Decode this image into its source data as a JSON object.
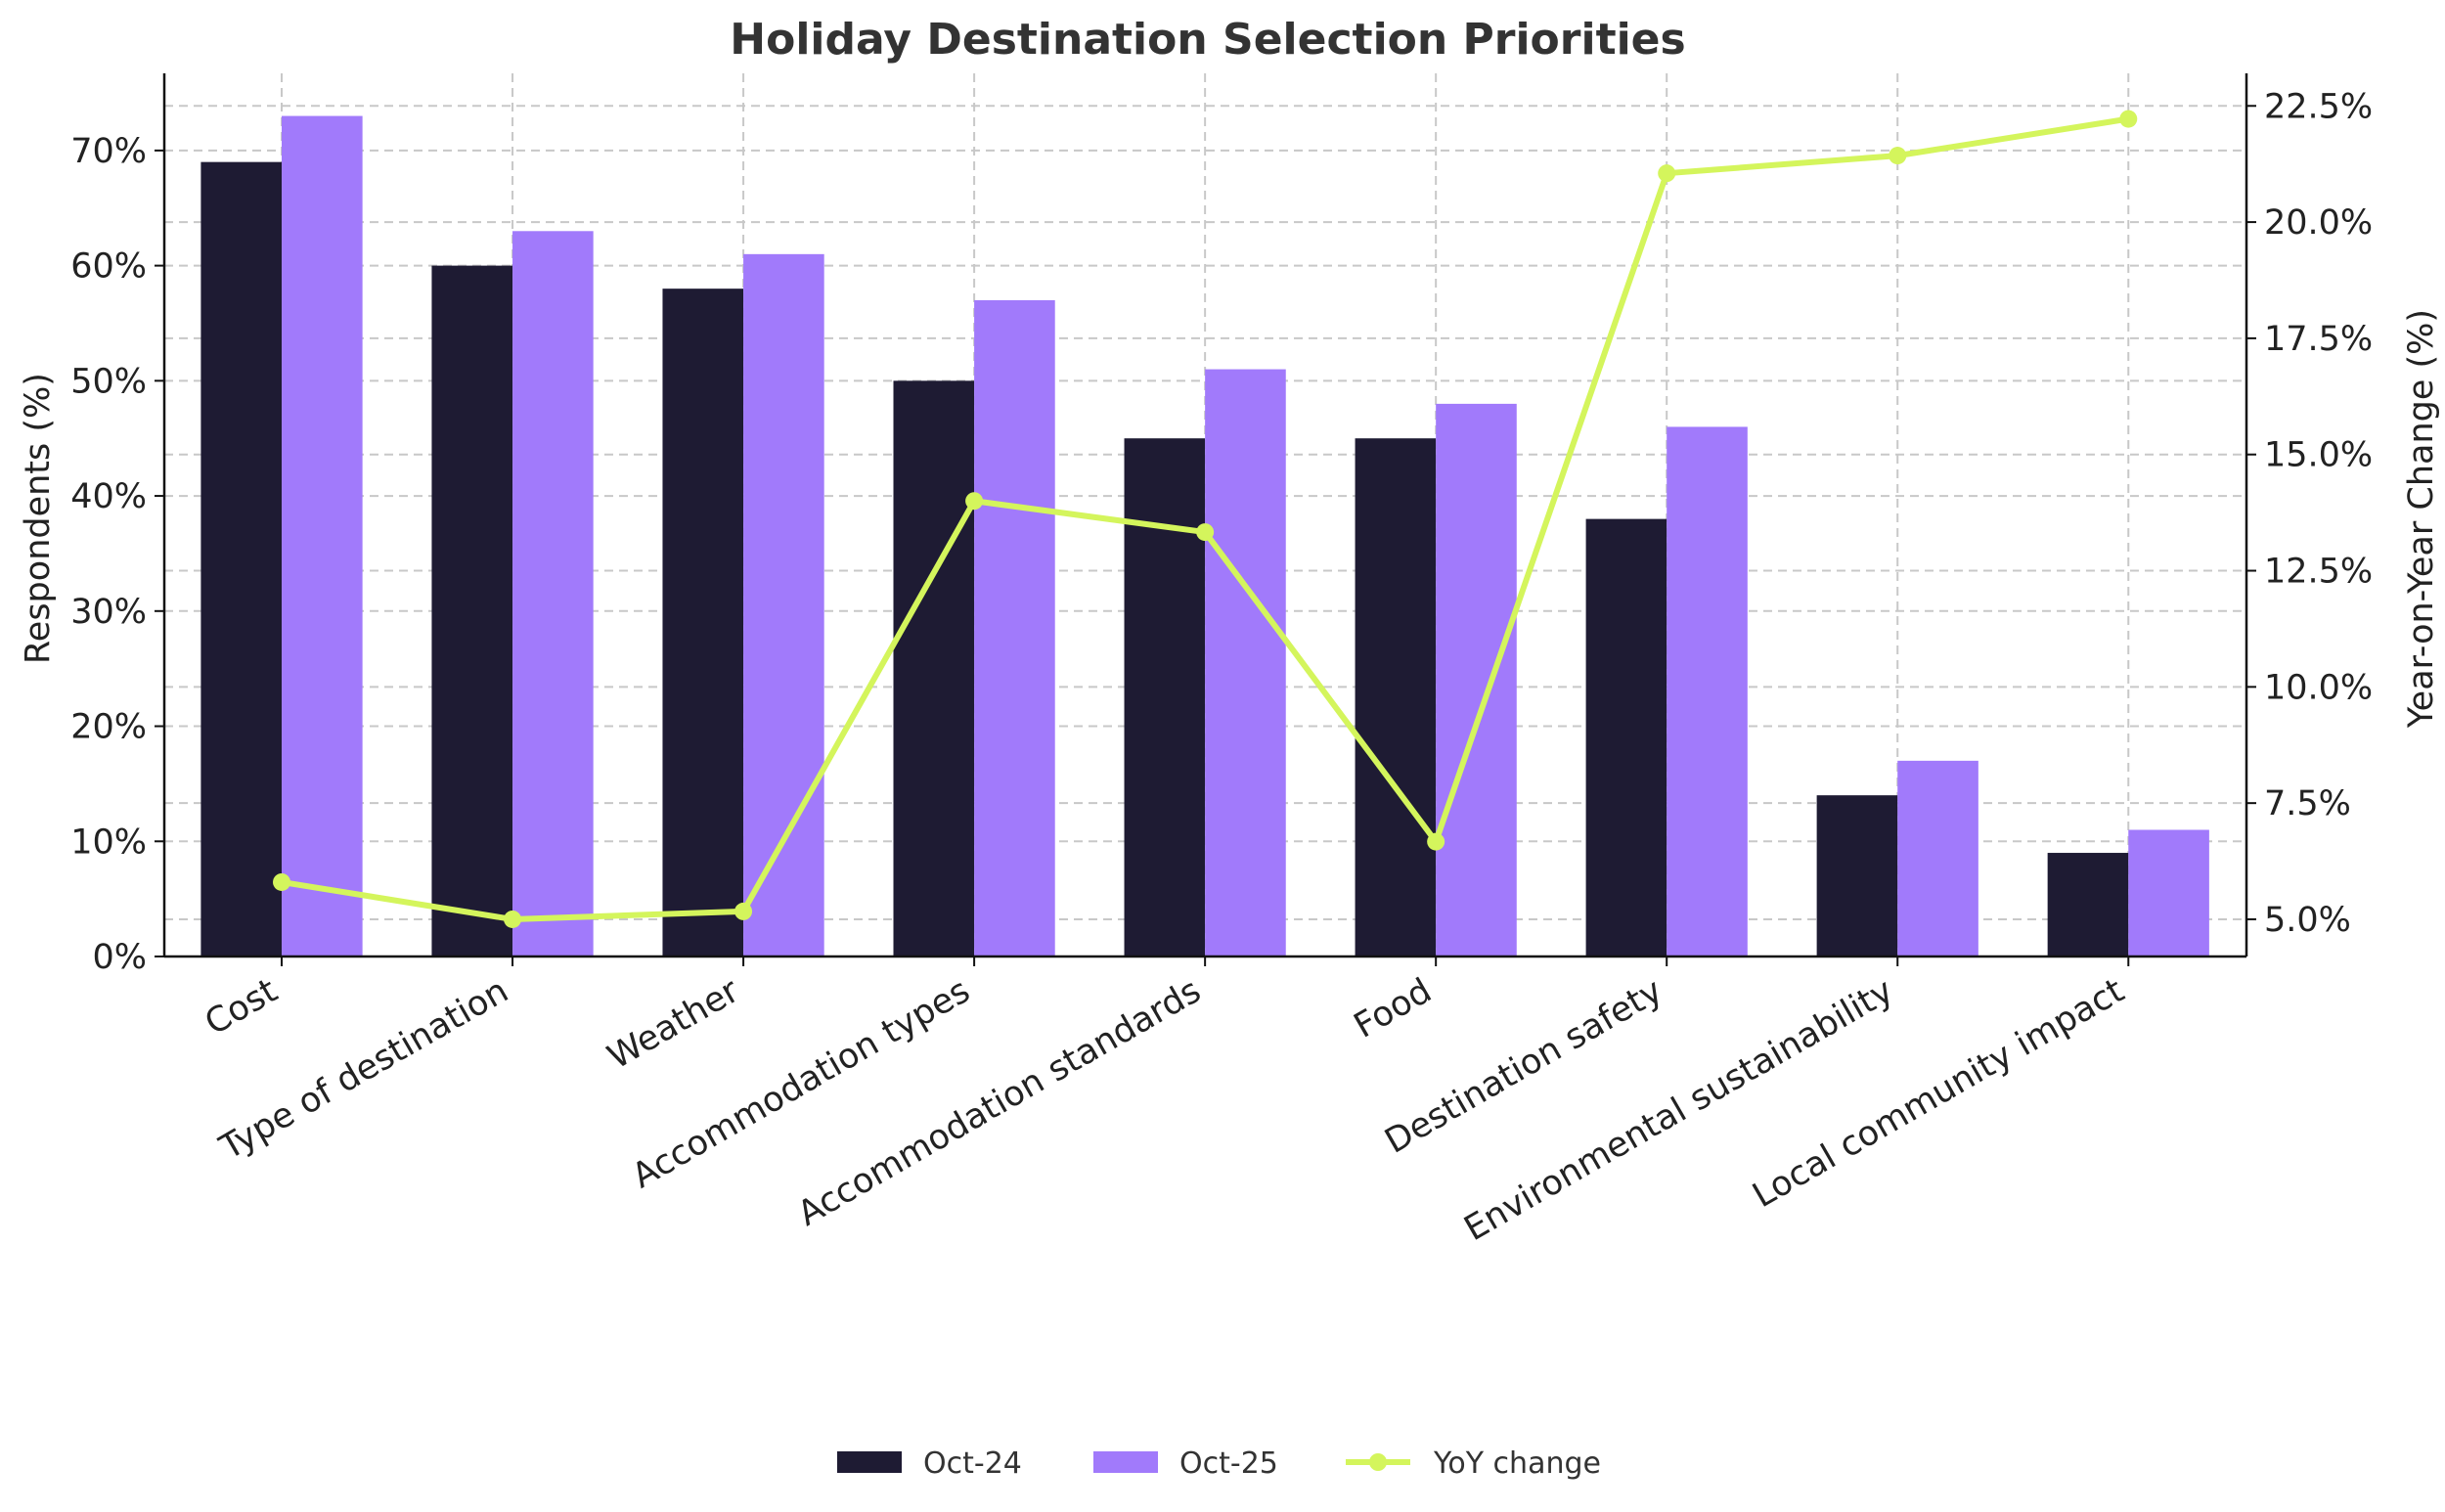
{
  "chart_data": {
    "type": "bar",
    "title": "Holiday Destination Selection Priorities",
    "xlabel": "",
    "ylabel": "Respondents (%)",
    "y2label": "Year-on-Year Change (%)",
    "categories": [
      "Cost",
      "Type of destination",
      "Weather",
      "Accommodation types",
      "Accommodation standards",
      "Food",
      "Destination safety",
      "Environmental sustainability",
      "Local community impact"
    ],
    "series": [
      {
        "name": "Oct-24",
        "type": "bar",
        "axis": "left",
        "color": "#1e1b33",
        "values": [
          69,
          60,
          58,
          50,
          45,
          45,
          38,
          14,
          9
        ]
      },
      {
        "name": "Oct-25",
        "type": "bar",
        "axis": "left",
        "color": "#a17afb",
        "values": [
          73,
          63,
          61,
          57,
          51,
          48,
          46,
          17,
          11
        ]
      },
      {
        "name": "YoY change",
        "type": "line",
        "axis": "right",
        "color": "#d4f55c",
        "values": [
          5.8,
          5.0,
          5.17,
          14.0,
          13.33,
          6.67,
          21.05,
          21.43,
          22.22
        ]
      }
    ],
    "ylim": [
      0,
      76.7
    ],
    "y2lim": [
      4.2,
      23.2
    ],
    "yticks": [
      0,
      10,
      20,
      30,
      40,
      50,
      60,
      70
    ],
    "ytick_labels": [
      "0%",
      "10%",
      "20%",
      "30%",
      "40%",
      "50%",
      "60%",
      "70%"
    ],
    "y2ticks": [
      5.0,
      7.5,
      10.0,
      12.5,
      15.0,
      17.5,
      20.0,
      22.5
    ],
    "y2tick_labels": [
      "5.0%",
      "7.5%",
      "10.0%",
      "12.5%",
      "15.0%",
      "17.5%",
      "20.0%",
      "22.5%"
    ],
    "grid": true,
    "legend": {
      "position": "bottom-center",
      "entries": [
        "Oct-24",
        "Oct-25",
        "YoY change"
      ]
    }
  }
}
